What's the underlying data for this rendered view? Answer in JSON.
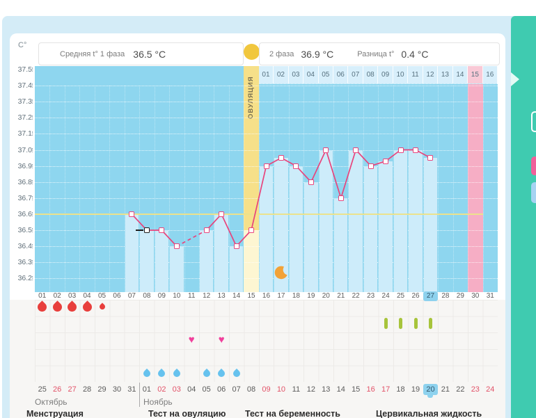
{
  "header": {
    "phase1_label": "Средняя t° 1 фаза",
    "phase1_value": "36.5 °С",
    "phase2_label": "2 фаза",
    "phase2_value": "36.9 °С",
    "diff_label": "Разница t°",
    "diff_value": "0.4 °С",
    "ovulation_label": "ОВУЛЯЦИЯ"
  },
  "axis": {
    "unit": "C°",
    "ticks": [
      "37.5",
      "37.4",
      "37.3",
      "37.2",
      "37.1",
      "37.0",
      "36.9",
      "36.8",
      "36.7",
      "36.6",
      "36.5",
      "36.4",
      "36.3",
      "36.2"
    ]
  },
  "days": [
    "01",
    "02",
    "03",
    "04",
    "05",
    "06",
    "07",
    "08",
    "09",
    "10",
    "11",
    "12",
    "13",
    "14",
    "15",
    "16",
    "17",
    "18",
    "19",
    "20",
    "21",
    "22",
    "23",
    "24",
    "25",
    "26",
    "27",
    "28",
    "29",
    "30",
    "31"
  ],
  "chart_data": {
    "type": "line",
    "ylim": [
      36.2,
      37.5
    ],
    "coverline": 36.6,
    "ovulation_day": 15,
    "expected_period_day": 30,
    "today_cycle_day": 27,
    "selected_day": 8,
    "moon_day": 17,
    "phase2_day_labels": [
      "01",
      "02",
      "03",
      "04",
      "05",
      "06",
      "07",
      "08",
      "09",
      "10",
      "11",
      "12",
      "13",
      "14",
      "15",
      "16"
    ],
    "phase2_highlight": "15",
    "series": [
      {
        "name": "temperature",
        "points": [
          {
            "day": 7,
            "t": 36.6
          },
          {
            "day": 8,
            "t": 36.5
          },
          {
            "day": 9,
            "t": 36.5
          },
          {
            "day": 10,
            "t": 36.4
          },
          {
            "day": 12,
            "t": 36.5
          },
          {
            "day": 13,
            "t": 36.6
          },
          {
            "day": 14,
            "t": 36.4
          },
          {
            "day": 15,
            "t": 36.5
          },
          {
            "day": 16,
            "t": 36.9
          },
          {
            "day": 17,
            "t": 36.95
          },
          {
            "day": 18,
            "t": 36.9
          },
          {
            "day": 19,
            "t": 36.8
          },
          {
            "day": 20,
            "t": 37.0
          },
          {
            "day": 21,
            "t": 36.7
          },
          {
            "day": 22,
            "t": 37.0
          },
          {
            "day": 23,
            "t": 36.9
          },
          {
            "day": 24,
            "t": 36.93
          },
          {
            "day": 25,
            "t": 37.0
          },
          {
            "day": 26,
            "t": 37.0
          },
          {
            "day": 27,
            "t": 36.95
          }
        ]
      }
    ]
  },
  "events": {
    "menstruation": [
      {
        "day": 1
      },
      {
        "day": 2
      },
      {
        "day": 3
      },
      {
        "day": 4
      },
      {
        "day": 5,
        "small": true
      }
    ],
    "pregnancy_test_days": [
      24,
      25,
      26,
      27
    ],
    "intercourse_days": [
      11,
      13
    ],
    "ovulation_test_days": [
      8,
      9,
      10,
      12,
      13,
      14
    ]
  },
  "calendar": {
    "month_left": "Октябрь",
    "month_right": "Ноябрь",
    "dates": [
      {
        "t": "25",
        "w": 0
      },
      {
        "t": "26",
        "w": 1
      },
      {
        "t": "27",
        "w": 1
      },
      {
        "t": "28",
        "w": 0
      },
      {
        "t": "29",
        "w": 0
      },
      {
        "t": "30",
        "w": 0
      },
      {
        "t": "31",
        "w": 0
      },
      {
        "t": "01",
        "w": 0
      },
      {
        "t": "02",
        "w": 1
      },
      {
        "t": "03",
        "w": 1
      },
      {
        "t": "04",
        "w": 0
      },
      {
        "t": "05",
        "w": 0
      },
      {
        "t": "06",
        "w": 0
      },
      {
        "t": "07",
        "w": 0
      },
      {
        "t": "08",
        "w": 0
      },
      {
        "t": "09",
        "w": 1
      },
      {
        "t": "10",
        "w": 1
      },
      {
        "t": "11",
        "w": 0
      },
      {
        "t": "12",
        "w": 0
      },
      {
        "t": "13",
        "w": 0
      },
      {
        "t": "14",
        "w": 0
      },
      {
        "t": "15",
        "w": 0
      },
      {
        "t": "16",
        "w": 1
      },
      {
        "t": "17",
        "w": 1
      },
      {
        "t": "18",
        "w": 0
      },
      {
        "t": "19",
        "w": 0
      },
      {
        "t": "20",
        "w": 0,
        "today": true
      },
      {
        "t": "21",
        "w": 0
      },
      {
        "t": "22",
        "w": 0
      },
      {
        "t": "23",
        "w": 1
      },
      {
        "t": "24",
        "w": 1
      }
    ]
  },
  "legend": [
    "Менструация",
    "Тест на овуляцию",
    "Тест на беременность",
    "Цервикальная жидкость"
  ],
  "colors": {
    "accent_pink": "#e8447c",
    "chart_bg": "#8ed6ef",
    "bar_blue": "#cdecfa",
    "ovulation_yellow": "#f6e089",
    "period_pink": "#f6aec5",
    "teal_panel": "#3fcbb0",
    "menstruation_red": "#e83f3c",
    "ovulation_test_blue": "#66c2ee",
    "intercourse_pink": "#f0409b",
    "pregnancy_test_green": "#a7c43b",
    "today_blue": "#8ed2ee",
    "weekend_red": "#e25268",
    "moon_orange": "#f2a237"
  }
}
